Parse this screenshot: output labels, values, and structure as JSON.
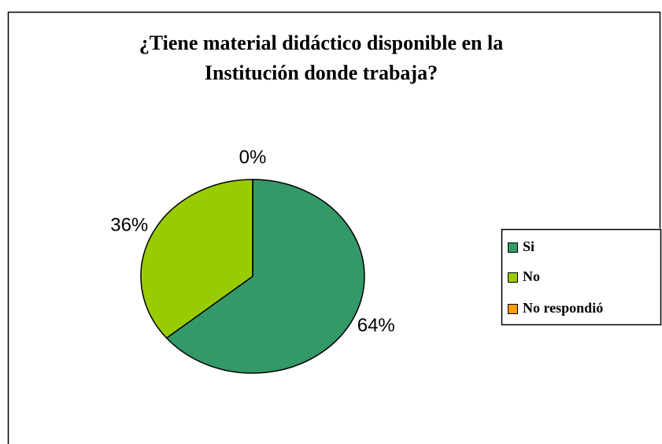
{
  "chart_data": {
    "type": "pie",
    "title": [
      "¿Tiene material didáctico disponible en la",
      "Institución donde trabaja?"
    ],
    "categories": [
      "Si",
      "No",
      "No respondió"
    ],
    "values": [
      64,
      36,
      0
    ],
    "value_labels": [
      "64%",
      "36%",
      "0%"
    ],
    "colors": [
      "#339966",
      "#99cc00",
      "#ff9900"
    ],
    "legend": "right"
  }
}
